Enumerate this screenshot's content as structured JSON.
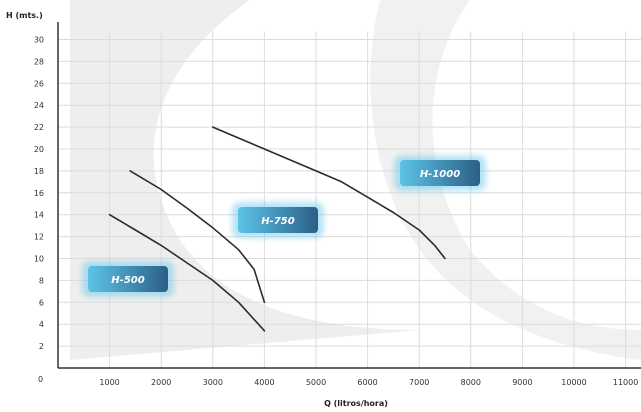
{
  "chart_data": {
    "type": "line",
    "xlabel": "Q (litros/hora)",
    "ylabel": "H (mts.)",
    "xlim": [
      0,
      11000
    ],
    "ylim": [
      0,
      30
    ],
    "x_ticks": [
      "1000",
      "2000",
      "3000",
      "4000",
      "5000",
      "6000",
      "7000",
      "8000",
      "9000",
      "10000",
      "11000"
    ],
    "y_ticks": [
      "2",
      "4",
      "6",
      "8",
      "10",
      "12",
      "14",
      "16",
      "18",
      "20",
      "22",
      "24",
      "26",
      "28",
      "30"
    ],
    "origin_label": "0",
    "grid": true,
    "series": [
      {
        "name": "H-500",
        "points": [
          [
            1000,
            14
          ],
          [
            1500,
            12.6
          ],
          [
            2000,
            11.2
          ],
          [
            2500,
            9.6
          ],
          [
            3000,
            8.0
          ],
          [
            3500,
            6.0
          ],
          [
            4000,
            3.4
          ]
        ]
      },
      {
        "name": "H-750",
        "points": [
          [
            1400,
            18
          ],
          [
            2000,
            16.3
          ],
          [
            2500,
            14.6
          ],
          [
            3000,
            12.8
          ],
          [
            3500,
            10.8
          ],
          [
            3800,
            9.0
          ],
          [
            4000,
            6.0
          ]
        ]
      },
      {
        "name": "H-1000",
        "points": [
          [
            3000,
            22
          ],
          [
            4000,
            20
          ],
          [
            5000,
            18
          ],
          [
            5500,
            17
          ],
          [
            6000,
            15.6
          ],
          [
            6500,
            14.2
          ],
          [
            7000,
            12.6
          ],
          [
            7300,
            11.2
          ],
          [
            7500,
            10
          ]
        ]
      }
    ],
    "badge_color_light": "#5cc4e8",
    "badge_color_dark": "#2c5f86"
  }
}
